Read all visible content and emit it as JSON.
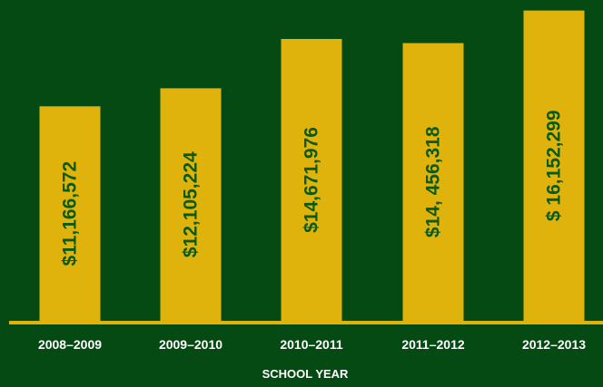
{
  "chart_data": {
    "type": "bar",
    "title": "",
    "xlabel": "SCHOOL YEAR",
    "ylabel": "",
    "categories": [
      "2008–2009",
      "2009–2010",
      "2010–2011",
      "2011–2012",
      "2012–2013"
    ],
    "values": [
      11166572,
      12105224,
      14671976,
      14456318,
      16152299
    ],
    "value_labels": [
      "$11,166,572",
      "$12,105,224",
      "$14,671,976",
      "$14, 456,318",
      "$ 16,152,299"
    ],
    "ylim": [
      0,
      16700000
    ],
    "grid": false,
    "legend": "none",
    "colors": {
      "background": "#054a12",
      "bar": "#dfb30b",
      "baseline": "#dfb30b",
      "value_text": "#0b5a14",
      "axis_text": "#ffffff"
    }
  }
}
